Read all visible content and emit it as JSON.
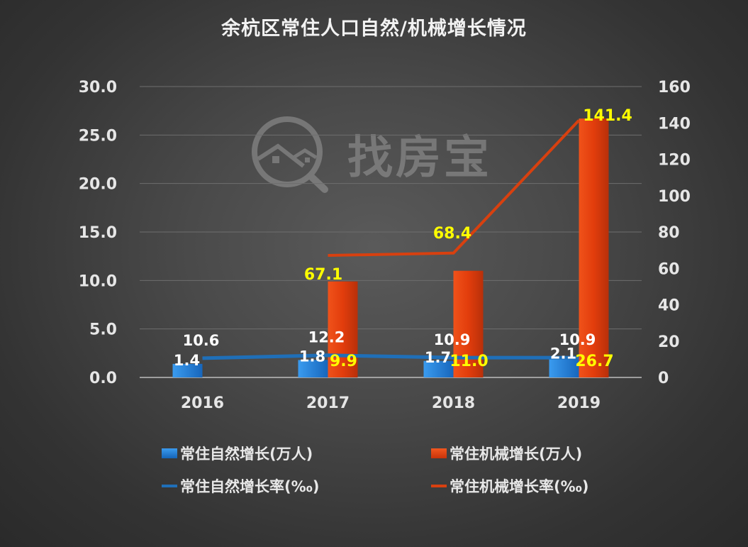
{
  "title": "余杭区常住人口自然/机械增长情况",
  "watermark": {
    "text": "找房宝",
    "icon": "magnifier-house-icon"
  },
  "colors": {
    "natural_bar": "#1f7fd6",
    "mechanical_bar": "#e03c0e",
    "natural_line": "#1f6fb8",
    "mechanical_line": "#d8400f",
    "label_white": "#ffffff",
    "label_yellow": "#ffff00",
    "gridline": "#7a7a7a"
  },
  "legend": [
    {
      "label": "常住自然增长(万人)",
      "kind": "bar",
      "color": "#1f7fd6"
    },
    {
      "label": "常住机械增长(万人)",
      "kind": "bar",
      "color": "#e03c0e"
    },
    {
      "label": "常住自然增长率(‰)",
      "kind": "line",
      "color": "#1f6fb8"
    },
    {
      "label": "常住机械增长率(‰)",
      "kind": "line",
      "color": "#d8400f"
    }
  ],
  "chart_data": {
    "type": "bar",
    "title": "余杭区常住人口自然/机械增长情况",
    "categories": [
      "2016",
      "2017",
      "2018",
      "2019"
    ],
    "series": [
      {
        "name": "常住自然增长(万人)",
        "type": "bar",
        "axis": "left",
        "values": [
          1.4,
          1.8,
          1.7,
          2.1
        ]
      },
      {
        "name": "常住机械增长(万人)",
        "type": "bar",
        "axis": "left",
        "values": [
          null,
          9.9,
          11.0,
          26.7
        ]
      },
      {
        "name": "常住自然增长率(‰)",
        "type": "line",
        "axis": "right",
        "values": [
          10.6,
          12.2,
          10.9,
          10.9
        ]
      },
      {
        "name": "常住机械增长率(‰)",
        "type": "line",
        "axis": "right",
        "values": [
          null,
          67.1,
          68.4,
          141.4
        ]
      }
    ],
    "y_left": {
      "ylim": [
        0,
        30
      ],
      "ticks": [
        "0.0",
        "5.0",
        "10.0",
        "15.0",
        "20.0",
        "25.0",
        "30.0"
      ]
    },
    "y_right": {
      "ylim": [
        0,
        160
      ],
      "ticks": [
        "0",
        "20",
        "40",
        "60",
        "80",
        "100",
        "120",
        "140",
        "160"
      ]
    },
    "xlabel": "",
    "ylabel": "",
    "grid": true,
    "legend_position": "bottom"
  }
}
